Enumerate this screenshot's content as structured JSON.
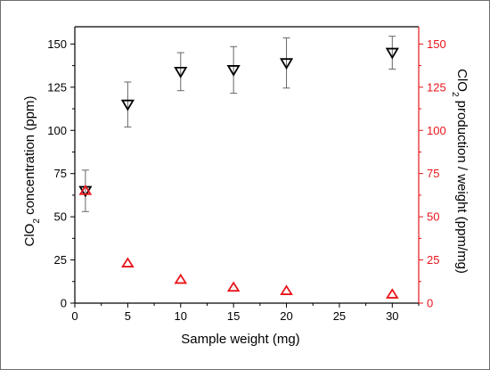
{
  "chart_data": {
    "type": "scatter",
    "xlabel": "Sample weight (mg)",
    "ylabel_left": {
      "pre": "ClO",
      "sub": "2",
      "post": " concentration (ppm)"
    },
    "ylabel_right": {
      "pre": "ClO",
      "sub": "2",
      "post": " production / weight (ppm/mg)"
    },
    "xlim": [
      0,
      32.5
    ],
    "ylim_left": [
      0,
      160
    ],
    "ylim_right": [
      0,
      160
    ],
    "x_ticks": [
      0,
      5,
      10,
      15,
      20,
      25,
      30
    ],
    "y_ticks_left": [
      0,
      25,
      50,
      75,
      100,
      125,
      150
    ],
    "y_ticks_right": [
      0,
      25,
      50,
      75,
      100,
      125,
      150
    ],
    "grid": false,
    "legend": "none",
    "colors": {
      "left_axis": "#000000",
      "right_axis": "#e8141b"
    },
    "series": [
      {
        "axis": "left",
        "marker": "triangle-down",
        "color": "#000000",
        "points": [
          {
            "x": 1,
            "y": 65,
            "err": 12
          },
          {
            "x": 5,
            "y": 115,
            "err": 13
          },
          {
            "x": 10,
            "y": 134,
            "err": 11
          },
          {
            "x": 15,
            "y": 135,
            "err": 13.5
          },
          {
            "x": 20,
            "y": 139,
            "err": 14.5
          },
          {
            "x": 30,
            "y": 145,
            "err": 9.5
          }
        ]
      },
      {
        "axis": "right",
        "marker": "triangle-up",
        "color": "#e8141b",
        "points": [
          {
            "x": 1,
            "y": 65
          },
          {
            "x": 5,
            "y": 23
          },
          {
            "x": 10,
            "y": 13.5
          },
          {
            "x": 15,
            "y": 9
          },
          {
            "x": 20,
            "y": 7
          },
          {
            "x": 30,
            "y": 5
          }
        ]
      }
    ]
  }
}
